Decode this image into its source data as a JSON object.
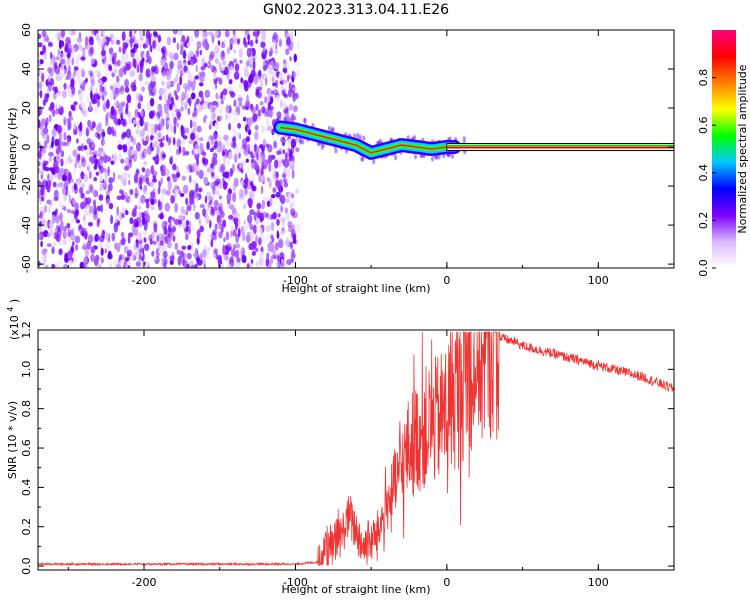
{
  "title": "GN02.2023.313.04.11.E26",
  "chart_data": [
    {
      "type": "heatmap",
      "xlabel": "Height of straight line (km)",
      "ylabel": "Frequency (Hz)",
      "xlim": [
        -270,
        150
      ],
      "ylim": [
        -62,
        60
      ],
      "x_ticks": [
        -200,
        -100,
        0,
        100
      ],
      "y_ticks": [
        -60,
        -40,
        -20,
        0,
        20,
        40,
        60
      ],
      "grid": false,
      "noise_region": {
        "x": [
          -270,
          -98
        ],
        "y": [
          -62,
          60
        ]
      },
      "signal_trace": [
        {
          "x": -110,
          "y": 10
        },
        {
          "x": -100,
          "y": 9
        },
        {
          "x": -90,
          "y": 7
        },
        {
          "x": -80,
          "y": 5
        },
        {
          "x": -70,
          "y": 3
        },
        {
          "x": -60,
          "y": 1
        },
        {
          "x": -50,
          "y": -3
        },
        {
          "x": -40,
          "y": -1
        },
        {
          "x": -30,
          "y": 1
        },
        {
          "x": -20,
          "y": 0
        },
        {
          "x": -10,
          "y": -1
        },
        {
          "x": 0,
          "y": 0
        },
        {
          "x": 5,
          "y": 0
        }
      ],
      "steady_line": {
        "x": [
          0,
          150
        ],
        "y": 0
      },
      "colorbar": {
        "label": "Normalized spectral amplitude",
        "range": [
          0.0,
          1.0
        ],
        "ticks": [
          "0.0",
          "0.2",
          "0.4",
          "0.6",
          "0.8"
        ],
        "colors": [
          "#ffffff",
          "#d9b8ff",
          "#7a00ff",
          "#0000ff",
          "#00c8ff",
          "#00ff00",
          "#ffff00",
          "#ff8000",
          "#ff0000",
          "#ff0080"
        ]
      }
    },
    {
      "type": "line",
      "xlabel": "Height of straight line (km)",
      "ylabel": "SNR (10 * v/v)",
      "y_multiplier": "(x10",
      "y_multiplier_exp": "4",
      "y_multiplier_close": ")",
      "xlim": [
        -270,
        150
      ],
      "ylim": [
        -0.02,
        1.2
      ],
      "x_ticks": [
        -200,
        -100,
        0,
        100
      ],
      "y_tick_labels": [
        "0.0",
        "0.2",
        "0.4",
        "0.6",
        "0.8",
        "1.0",
        "1.2"
      ],
      "y_tick_values": [
        0.0,
        0.2,
        0.4,
        0.6,
        0.8,
        1.0,
        1.2
      ],
      "grid": false,
      "line_color": "#ee3333",
      "series": [
        {
          "x": [
            -270,
            -200,
            -150,
            -100,
            -85,
            -80,
            -75,
            -70,
            -65,
            -60,
            -55,
            -50,
            -45,
            -40,
            -35,
            -30,
            -25,
            -20,
            -15,
            -10,
            -5,
            0,
            5,
            10,
            15,
            20,
            25,
            30,
            35,
            40,
            45,
            50,
            60,
            70,
            80,
            90,
            100,
            110,
            120,
            130,
            140,
            150
          ],
          "values": [
            0.01,
            0.01,
            0.01,
            0.01,
            0.02,
            0.08,
            0.12,
            0.15,
            0.25,
            0.18,
            0.1,
            0.12,
            0.18,
            0.3,
            0.4,
            0.5,
            0.6,
            0.65,
            0.7,
            0.72,
            0.75,
            0.8,
            0.88,
            0.95,
            1.02,
            1.08,
            1.12,
            1.15,
            1.16,
            1.15,
            1.14,
            1.12,
            1.1,
            1.08,
            1.06,
            1.04,
            1.02,
            1.0,
            0.98,
            0.96,
            0.93,
            0.9
          ]
        }
      ]
    }
  ]
}
